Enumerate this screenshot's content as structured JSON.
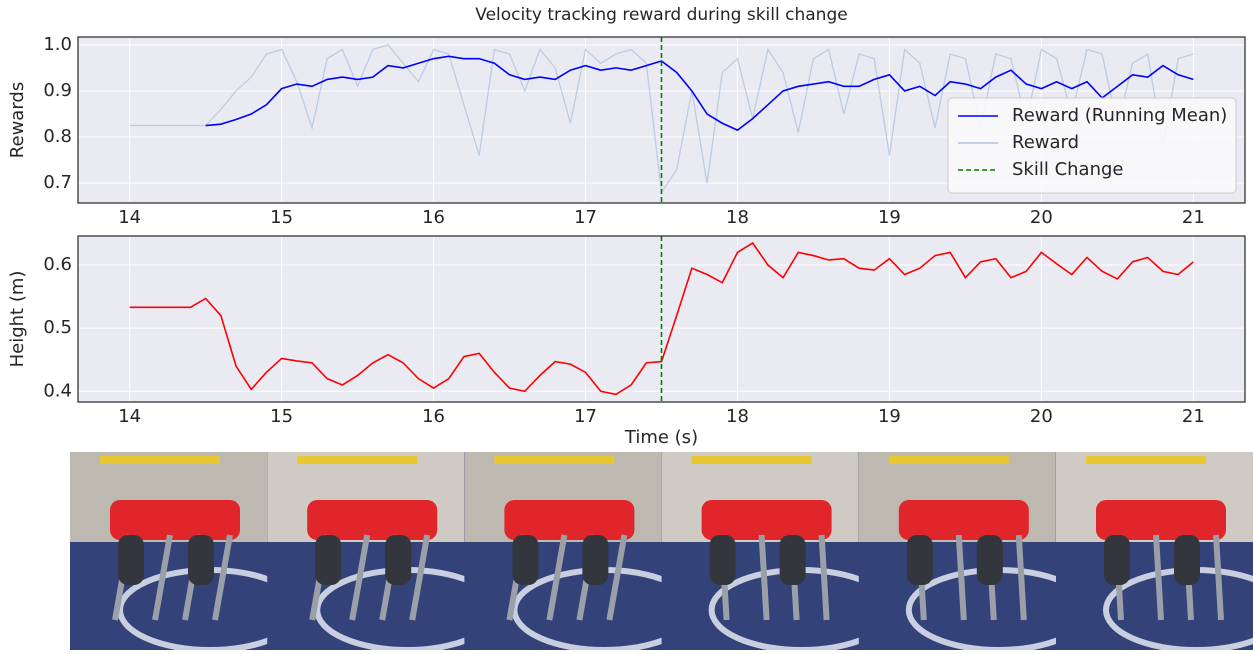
{
  "chart_data": [
    {
      "type": "line",
      "title": "Velocity tracking reward during skill change",
      "ylabel": "Rewards",
      "xlim": [
        13.66,
        21.34
      ],
      "ylim": [
        0.657,
        1.017
      ],
      "xticks": [
        14,
        15,
        16,
        17,
        18,
        19,
        20,
        21
      ],
      "yticks": [
        0.7,
        0.8,
        0.9,
        {
          "value": 1,
          "label": "1.0"
        }
      ],
      "grid": true,
      "legend": "lower right",
      "series": [
        {
          "name": "Reward (Running Mean)",
          "color": "#0000ff",
          "x": [
            14.5,
            14.6,
            14.7,
            14.8,
            14.9,
            15.0,
            15.1,
            15.2,
            15.3,
            15.4,
            15.5,
            15.6,
            15.7,
            15.8,
            15.9,
            16.0,
            16.1,
            16.2,
            16.3,
            16.4,
            16.5,
            16.6,
            16.7,
            16.8,
            16.9,
            17.0,
            17.1,
            17.2,
            17.3,
            17.4,
            17.5,
            17.6,
            17.7,
            17.8,
            17.9,
            18.0,
            18.1,
            18.2,
            18.3,
            18.4,
            18.5,
            18.6,
            18.7,
            18.8,
            18.9,
            19.0,
            19.1,
            19.2,
            19.3,
            19.4,
            19.5,
            19.6,
            19.7,
            19.8,
            19.9,
            20.0,
            20.1,
            20.2,
            20.3,
            20.4,
            20.5,
            20.6,
            20.7,
            20.8,
            20.9,
            21.0
          ],
          "values": [
            0.825,
            0.828,
            0.838,
            0.85,
            0.87,
            0.905,
            0.915,
            0.91,
            0.925,
            0.93,
            0.925,
            0.93,
            0.955,
            0.95,
            0.96,
            0.97,
            0.975,
            0.97,
            0.97,
            0.96,
            0.935,
            0.925,
            0.93,
            0.925,
            0.945,
            0.955,
            0.945,
            0.95,
            0.945,
            0.955,
            0.965,
            0.94,
            0.9,
            0.85,
            0.83,
            0.815,
            0.84,
            0.87,
            0.9,
            0.91,
            0.915,
            0.92,
            0.91,
            0.91,
            0.925,
            0.935,
            0.9,
            0.91,
            0.89,
            0.92,
            0.915,
            0.905,
            0.93,
            0.945,
            0.915,
            0.905,
            0.92,
            0.905,
            0.92,
            0.885,
            0.91,
            0.935,
            0.93,
            0.955,
            0.935,
            0.925
          ]
        },
        {
          "name": "Reward",
          "color": "#b0c4de",
          "x": [
            14.0,
            14.1,
            14.2,
            14.3,
            14.4,
            14.5,
            14.6,
            14.7,
            14.8,
            14.9,
            15.0,
            15.1,
            15.2,
            15.3,
            15.4,
            15.5,
            15.6,
            15.7,
            15.8,
            15.9,
            16.0,
            16.1,
            16.2,
            16.3,
            16.4,
            16.5,
            16.6,
            16.7,
            16.8,
            16.9,
            17.0,
            17.1,
            17.2,
            17.3,
            17.4,
            17.5,
            17.6,
            17.7,
            17.8,
            17.9,
            18.0,
            18.1,
            18.2,
            18.3,
            18.4,
            18.5,
            18.6,
            18.7,
            18.8,
            18.9,
            19.0,
            19.1,
            19.2,
            19.3,
            19.4,
            19.5,
            19.6,
            19.7,
            19.8,
            19.9,
            20.0,
            20.1,
            20.2,
            20.3,
            20.4,
            20.5,
            20.6,
            20.7,
            20.8,
            20.9,
            21.0
          ],
          "values": [
            0.825,
            0.825,
            0.825,
            0.825,
            0.825,
            0.825,
            0.86,
            0.9,
            0.93,
            0.98,
            0.99,
            0.92,
            0.82,
            0.97,
            0.99,
            0.91,
            0.99,
            1.0,
            0.96,
            0.92,
            0.99,
            0.98,
            0.87,
            0.76,
            0.99,
            0.98,
            0.9,
            0.99,
            0.95,
            0.83,
            0.99,
            0.96,
            0.98,
            0.99,
            0.96,
            0.68,
            0.73,
            0.9,
            0.7,
            0.94,
            0.97,
            0.84,
            0.99,
            0.94,
            0.81,
            0.97,
            0.99,
            0.85,
            0.98,
            0.97,
            0.76,
            0.99,
            0.96,
            0.82,
            0.98,
            0.97,
            0.82,
            0.98,
            0.97,
            0.83,
            0.99,
            0.97,
            0.85,
            0.99,
            0.98,
            0.82,
            0.96,
            0.98,
            0.78,
            0.97,
            0.98
          ]
        }
      ],
      "vline": {
        "x": 17.5,
        "name": "Skill Change",
        "color": "#008000"
      }
    },
    {
      "type": "line",
      "ylabel": "Height (m)",
      "xlabel": "Time (s)",
      "xlim": [
        13.66,
        21.34
      ],
      "ylim": [
        0.383,
        0.646
      ],
      "xticks": [
        14,
        15,
        16,
        17,
        18,
        19,
        20,
        21
      ],
      "yticks": [
        0.4,
        0.5,
        0.6
      ],
      "grid": true,
      "series": [
        {
          "color": "#ff0000",
          "x": [
            14.0,
            14.1,
            14.2,
            14.3,
            14.4,
            14.5,
            14.6,
            14.7,
            14.8,
            14.9,
            15.0,
            15.1,
            15.2,
            15.3,
            15.4,
            15.5,
            15.6,
            15.7,
            15.8,
            15.9,
            16.0,
            16.1,
            16.2,
            16.3,
            16.4,
            16.5,
            16.6,
            16.7,
            16.8,
            16.9,
            17.0,
            17.1,
            17.2,
            17.3,
            17.4,
            17.5,
            17.6,
            17.7,
            17.8,
            17.9,
            18.0,
            18.1,
            18.2,
            18.3,
            18.4,
            18.5,
            18.6,
            18.7,
            18.8,
            18.9,
            19.0,
            19.1,
            19.2,
            19.3,
            19.4,
            19.5,
            19.6,
            19.7,
            19.8,
            19.9,
            20.0,
            20.1,
            20.2,
            20.3,
            20.4,
            20.5,
            20.6,
            20.7,
            20.8,
            20.9,
            21.0
          ],
          "values": [
            0.533,
            0.533,
            0.533,
            0.533,
            0.533,
            0.547,
            0.52,
            0.44,
            0.403,
            0.43,
            0.452,
            0.448,
            0.445,
            0.42,
            0.41,
            0.425,
            0.445,
            0.458,
            0.445,
            0.42,
            0.405,
            0.42,
            0.455,
            0.46,
            0.43,
            0.405,
            0.4,
            0.425,
            0.447,
            0.443,
            0.43,
            0.4,
            0.395,
            0.41,
            0.445,
            0.447,
            0.52,
            0.595,
            0.585,
            0.572,
            0.62,
            0.635,
            0.6,
            0.58,
            0.62,
            0.615,
            0.608,
            0.61,
            0.595,
            0.592,
            0.61,
            0.585,
            0.595,
            0.615,
            0.62,
            0.58,
            0.605,
            0.61,
            0.58,
            0.59,
            0.62,
            0.602,
            0.585,
            0.612,
            0.59,
            0.578,
            0.605,
            0.612,
            0.59,
            0.585,
            0.605
          ]
        }
      ],
      "vline": {
        "x": 17.5,
        "color": "#008000"
      }
    }
  ]
}
